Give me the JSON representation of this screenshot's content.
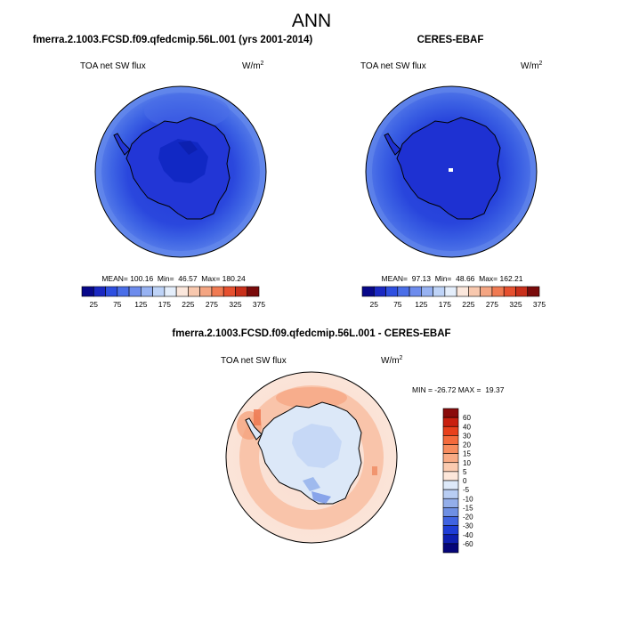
{
  "chart_data": {
    "type": "polar-contour-map",
    "title": "ANN",
    "panels": [
      {
        "id": "model",
        "title": "fmerra.2.1003.FCSD.f09.qfedcmip.56L.001 (yrs 2001-2014)",
        "variable": "TOA net SW flux",
        "units_base": "W/m",
        "units_exp": "2",
        "stats": "MEAN= 100.16  Min=  46.57  Max= 180.24",
        "mean": 100.16,
        "min": 46.57,
        "max": 180.24
      },
      {
        "id": "obs",
        "title": "CERES-EBAF",
        "variable": "TOA net SW flux",
        "units_base": "W/m",
        "units_exp": "2",
        "stats": "MEAN=  97.13  Min=  48.66  Max= 162.21",
        "mean": 97.13,
        "min": 48.66,
        "max": 162.21
      },
      {
        "id": "diff",
        "title": "fmerra.2.1003.FCSD.f09.qfedcmip.56L.001 - CERES-EBAF",
        "variable": "TOA net SW flux",
        "units_base": "W/m",
        "units_exp": "2",
        "stats": "MIN = -26.72 MAX =  19.37",
        "min": -26.72,
        "max": 19.37
      }
    ],
    "colorbar_main": {
      "orientation": "horizontal",
      "levels": [
        25,
        50,
        75,
        100,
        125,
        150,
        175,
        200,
        225,
        250,
        275,
        300,
        325,
        350,
        375
      ],
      "tick_labels": [
        "25",
        "75",
        "125",
        "175",
        "225",
        "275",
        "325",
        "375"
      ],
      "colors": [
        "#08088a",
        "#1a28c2",
        "#2e4fe0",
        "#4a6ee8",
        "#6d8ced",
        "#97b2f2",
        "#bed3f7",
        "#e4eefb",
        "#fbe7dc",
        "#f8c8ae",
        "#f4a582",
        "#f07a52",
        "#e6502f",
        "#c9301b",
        "#7a0b0b"
      ]
    },
    "colorbar_diff": {
      "orientation": "vertical",
      "levels": [
        -60,
        -40,
        -30,
        -20,
        -15,
        -10,
        -5,
        0,
        5,
        10,
        15,
        20,
        30,
        40,
        60
      ],
      "tick_labels": [
        "60",
        "40",
        "30",
        "20",
        "15",
        "10",
        "5",
        "0",
        "-5",
        "-10",
        "-15",
        "-20",
        "-30",
        "-40",
        "-60"
      ],
      "colors_top_to_bottom": [
        "#8a0b0b",
        "#c9200f",
        "#e8401c",
        "#f46a3c",
        "#f78c5e",
        "#f9ab85",
        "#fbcbb0",
        "#fde7da",
        "#dde9f9",
        "#b8cdf3",
        "#93aeea",
        "#6e8fe3",
        "#3f63e1",
        "#1e3dd6",
        "#0e1fb0",
        "#050579"
      ]
    }
  }
}
